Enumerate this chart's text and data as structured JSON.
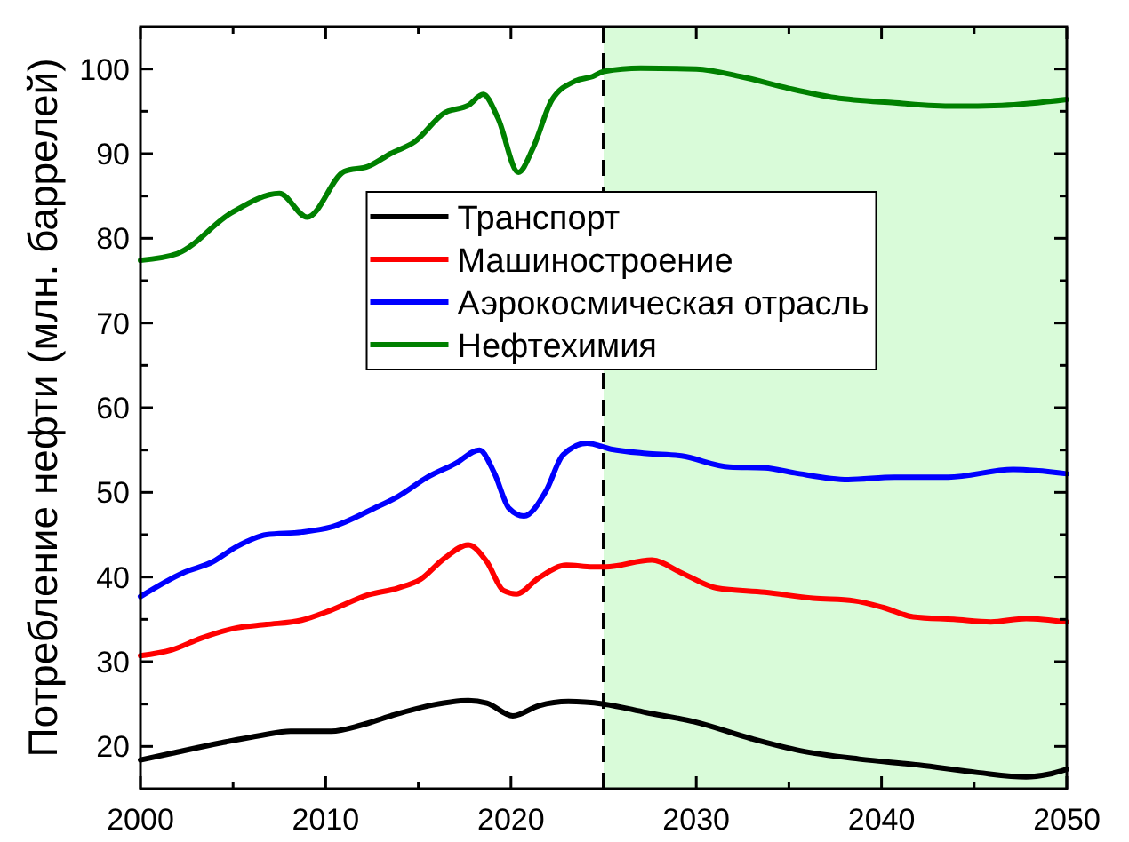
{
  "chart_data": {
    "type": "line",
    "ylabel": "Потребление нефти (млн. баррелей)",
    "xlim": [
      2000,
      2050
    ],
    "ylim": [
      15,
      105
    ],
    "xticks": [
      2000,
      {
        "value": 2005,
        "label": null
      },
      2010,
      {
        "value": 2015,
        "label": null
      },
      2020,
      {
        "value": 2025,
        "label": null
      },
      2030,
      {
        "value": 2035,
        "label": null
      },
      2040,
      {
        "value": 2045,
        "label": null
      },
      2050
    ],
    "yticks": [
      20,
      {
        "value": 25,
        "label": null
      },
      30,
      {
        "value": 35,
        "label": null
      },
      40,
      {
        "value": 45,
        "label": null
      },
      50,
      {
        "value": 55,
        "label": null
      },
      60,
      {
        "value": 65,
        "label": null
      },
      70,
      {
        "value": 75,
        "label": null
      },
      80,
      {
        "value": 85,
        "label": null
      },
      90,
      {
        "value": 95,
        "label": null
      },
      100
    ],
    "legend": "top",
    "bands": [
      {
        "axis": "x",
        "from": 2025,
        "to": 2050,
        "color": "#d9fbd9"
      }
    ],
    "ref_lines": [
      {
        "axis": "x",
        "value": 2025,
        "color": "#000000",
        "line_style": "dashed"
      }
    ],
    "series": [
      {
        "name": "Транспорт",
        "color": "#000000",
        "x": [
          2000,
          2001.7,
          2004.3,
          2006.5,
          2008.1,
          2010.3,
          2011.9,
          2013.5,
          2015.8,
          2017.7,
          2018.7,
          2020.1,
          2021.5,
          2023.1,
          2025,
          2027.3,
          2029.9,
          2033,
          2035.6,
          2038.8,
          2042,
          2045.2,
          2047.8,
          2049,
          2050
        ],
        "values": [
          18.4,
          19.2,
          20.4,
          21.3,
          21.8,
          21.8,
          22.5,
          23.6,
          24.9,
          25.4,
          25.1,
          23.6,
          24.8,
          25.3,
          25.0,
          24.0,
          22.9,
          20.9,
          19.5,
          18.5,
          17.8,
          16.9,
          16.4,
          16.7,
          17.3
        ]
      },
      {
        "name": "Машиностроение",
        "color": "#ff0000",
        "x": [
          2000,
          2001.7,
          2003.3,
          2005.2,
          2006.8,
          2008.7,
          2010.3,
          2012.3,
          2013.9,
          2015.1,
          2016.4,
          2017.7,
          2018.7,
          2019.6,
          2020.3,
          2021.5,
          2023,
          2024.4,
          2025.1,
          2027.6,
          2029.2,
          2031.1,
          2033.7,
          2036.3,
          2038.5,
          2040.1,
          2041.7,
          2043.9,
          2045.9,
          2047.8,
          2050
        ],
        "values": [
          30.7,
          31.4,
          32.8,
          34.0,
          34.4,
          34.9,
          36.1,
          37.9,
          38.7,
          39.7,
          42.2,
          43.8,
          41.8,
          38.4,
          38.0,
          39.9,
          41.4,
          41.2,
          41.2,
          42.0,
          40.5,
          38.7,
          38.2,
          37.5,
          37.2,
          36.4,
          35.3,
          35.0,
          34.7,
          35.1,
          34.7
        ]
      },
      {
        "name": "Аэрокосмическая отрасль",
        "color": "#0000ff",
        "x": [
          2000,
          2002.3,
          2003.9,
          2005.2,
          2006.8,
          2008.7,
          2010.3,
          2012.6,
          2013.9,
          2015.5,
          2017,
          2018.3,
          2019.1,
          2019.9,
          2020.7,
          2021.9,
          2022.8,
          2024.1,
          2025.4,
          2027.3,
          2029.2,
          2031.8,
          2033.7,
          2035.3,
          2038.2,
          2040.7,
          2043.6,
          2047.1,
          2050
        ],
        "values": [
          37.7,
          40.5,
          41.8,
          43.6,
          45.0,
          45.3,
          45.9,
          48.1,
          49.5,
          51.8,
          53.4,
          55.0,
          52.3,
          48.1,
          47.2,
          50.2,
          54.4,
          55.8,
          55.1,
          54.6,
          54.3,
          53.0,
          52.9,
          52.3,
          51.5,
          51.8,
          51.8,
          52.7,
          52.2
        ]
      },
      {
        "name": "Нефтехимия",
        "color": "#008000",
        "x": [
          2000,
          2002,
          2004.9,
          2007.5,
          2009,
          2011,
          2012.3,
          2013.5,
          2014.8,
          2016.4,
          2017.7,
          2018.5,
          2019.3,
          2020.4,
          2021.2,
          2022.2,
          2023.5,
          2024.4,
          2025,
          2027,
          2030,
          2032.4,
          2035,
          2037.5,
          2040.7,
          2043.9,
          2046.5,
          2050
        ],
        "values": [
          77.4,
          78.2,
          83.0,
          85.3,
          82.5,
          87.9,
          88.5,
          90.0,
          91.4,
          94.8,
          95.7,
          97.0,
          94.2,
          87.8,
          90.7,
          96.3,
          98.6,
          99.1,
          99.7,
          100.1,
          100.0,
          99.1,
          97.7,
          96.6,
          96.0,
          95.6,
          95.7,
          96.4
        ]
      }
    ]
  }
}
